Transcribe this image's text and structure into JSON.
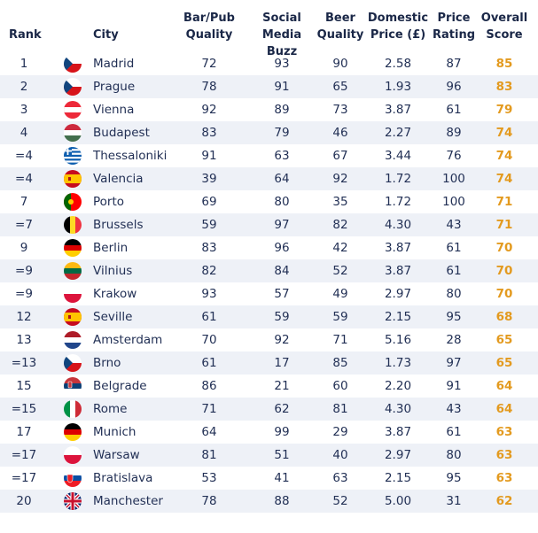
{
  "headers": {
    "rank": "Rank",
    "city": "City",
    "bar": [
      "Bar/Pub",
      "Quality"
    ],
    "social": [
      "Social",
      "Media Buzz"
    ],
    "beer": [
      "Beer",
      "Quality"
    ],
    "price": [
      "Domestic",
      "Price (£)"
    ],
    "rating": [
      "Price",
      "Rating"
    ],
    "score": [
      "Overall",
      "Score"
    ]
  },
  "colors": {
    "score": "#e39a1f",
    "alt_row": "#eef1f7",
    "text": "#223055"
  },
  "rows": [
    {
      "rank": "1",
      "flag": "czech-flag-icon",
      "city": "Madrid",
      "bar": "72",
      "social": "93",
      "beer": "90",
      "price": "2.58",
      "rating": "87",
      "score": "85"
    },
    {
      "rank": "2",
      "flag": "czech-flag-icon",
      "city": "Prague",
      "bar": "78",
      "social": "91",
      "beer": "65",
      "price": "1.93",
      "rating": "96",
      "score": "83"
    },
    {
      "rank": "3",
      "flag": "austria-flag-icon",
      "city": "Vienna",
      "bar": "92",
      "social": "89",
      "beer": "73",
      "price": "3.87",
      "rating": "61",
      "score": "79"
    },
    {
      "rank": "4",
      "flag": "hungary-flag-icon",
      "city": "Budapest",
      "bar": "83",
      "social": "79",
      "beer": "46",
      "price": "2.27",
      "rating": "89",
      "score": "74"
    },
    {
      "rank": "=4",
      "flag": "greece-flag-icon",
      "city": "Thessaloniki",
      "bar": "91",
      "social": "63",
      "beer": "67",
      "price": "3.44",
      "rating": "76",
      "score": "74"
    },
    {
      "rank": "=4",
      "flag": "spain-flag-icon",
      "city": "Valencia",
      "bar": "39",
      "social": "64",
      "beer": "92",
      "price": "1.72",
      "rating": "100",
      "score": "74"
    },
    {
      "rank": "7",
      "flag": "portugal-flag-icon",
      "city": "Porto",
      "bar": "69",
      "social": "80",
      "beer": "35",
      "price": "1.72",
      "rating": "100",
      "score": "71"
    },
    {
      "rank": "=7",
      "flag": "belgium-flag-icon",
      "city": "Brussels",
      "bar": "59",
      "social": "97",
      "beer": "82",
      "price": "4.30",
      "rating": "43",
      "score": "71"
    },
    {
      "rank": "9",
      "flag": "germany-flag-icon",
      "city": "Berlin",
      "bar": "83",
      "social": "96",
      "beer": "42",
      "price": "3.87",
      "rating": "61",
      "score": "70"
    },
    {
      "rank": "=9",
      "flag": "lithuania-flag-icon",
      "city": "Vilnius",
      "bar": "82",
      "social": "84",
      "beer": "52",
      "price": "3.87",
      "rating": "61",
      "score": "70"
    },
    {
      "rank": "=9",
      "flag": "poland-flag-icon",
      "city": "Krakow",
      "bar": "93",
      "social": "57",
      "beer": "49",
      "price": "2.97",
      "rating": "80",
      "score": "70"
    },
    {
      "rank": "12",
      "flag": "spain-flag-icon",
      "city": "Seville",
      "bar": "61",
      "social": "59",
      "beer": "59",
      "price": "2.15",
      "rating": "95",
      "score": "68"
    },
    {
      "rank": "13",
      "flag": "netherlands-flag-icon",
      "city": "Amsterdam",
      "bar": "70",
      "social": "92",
      "beer": "71",
      "price": "5.16",
      "rating": "28",
      "score": "65"
    },
    {
      "rank": "=13",
      "flag": "czech-flag-icon",
      "city": "Brno",
      "bar": "61",
      "social": "17",
      "beer": "85",
      "price": "1.73",
      "rating": "97",
      "score": "65"
    },
    {
      "rank": "15",
      "flag": "serbia-flag-icon",
      "city": "Belgrade",
      "bar": "86",
      "social": "21",
      "beer": "60",
      "price": "2.20",
      "rating": "91",
      "score": "64"
    },
    {
      "rank": "=15",
      "flag": "italy-flag-icon",
      "city": "Rome",
      "bar": "71",
      "social": "62",
      "beer": "81",
      "price": "4.30",
      "rating": "43",
      "score": "64"
    },
    {
      "rank": "17",
      "flag": "germany-flag-icon",
      "city": "Munich",
      "bar": "64",
      "social": "99",
      "beer": "29",
      "price": "3.87",
      "rating": "61",
      "score": "63"
    },
    {
      "rank": "=17",
      "flag": "poland-flag-icon",
      "city": "Warsaw",
      "bar": "81",
      "social": "51",
      "beer": "40",
      "price": "2.97",
      "rating": "80",
      "score": "63"
    },
    {
      "rank": "=17",
      "flag": "slovakia-flag-icon",
      "city": "Bratislava",
      "bar": "53",
      "social": "41",
      "beer": "63",
      "price": "2.15",
      "rating": "95",
      "score": "63"
    },
    {
      "rank": "20",
      "flag": "uk-flag-icon",
      "city": "Manchester",
      "bar": "78",
      "social": "88",
      "beer": "52",
      "price": "5.00",
      "rating": "31",
      "score": "62"
    }
  ]
}
